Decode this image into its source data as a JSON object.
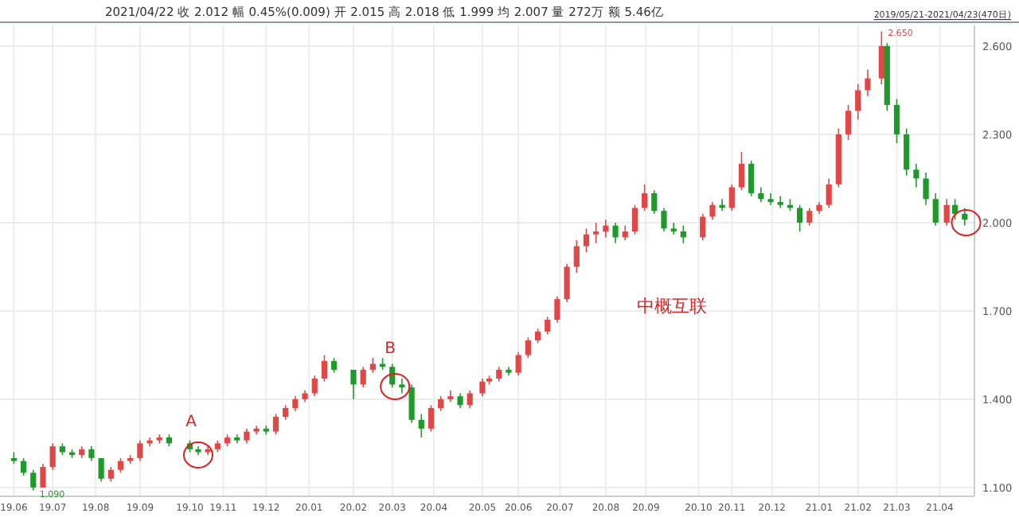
{
  "chart_data": {
    "type": "candlestick",
    "title": "2021/04/22 收 2.012 幅 0.45%(0.009) 开 2.015 高 2.018 低 1.999 均 2.007 量 272万 额 5.46亿",
    "annotations": [
      "中概互联",
      "2019/05/21-2021/04/23(470日)",
      {
        "text": "2.650",
        "x": "2021-02-18",
        "y": 2.65
      },
      {
        "text": "1.090",
        "x": "2019-06-17",
        "y": 1.09
      },
      "A",
      "B"
    ],
    "x": [
      "2019-06-03",
      "2019-06-10",
      "2019-06-17",
      "2019-06-24",
      "2019-07-01",
      "2019-07-08",
      "2019-07-15",
      "2019-07-22",
      "2019-07-29",
      "2019-08-05",
      "2019-08-12",
      "2019-08-19",
      "2019-08-26",
      "2019-09-02",
      "2019-09-09",
      "2019-09-16",
      "2019-09-23",
      "2019-10-08",
      "2019-10-14",
      "2019-10-21",
      "2019-10-28",
      "2019-11-04",
      "2019-11-11",
      "2019-11-18",
      "2019-11-25",
      "2019-12-02",
      "2019-12-09",
      "2019-12-16",
      "2019-12-23",
      "2019-12-30",
      "2020-01-06",
      "2020-01-13",
      "2020-01-20",
      "2020-02-03",
      "2020-02-10",
      "2020-02-17",
      "2020-02-24",
      "2020-03-02",
      "2020-03-09",
      "2020-03-16",
      "2020-03-23",
      "2020-03-30",
      "2020-04-06",
      "2020-04-13",
      "2020-04-20",
      "2020-04-27",
      "2020-05-06",
      "2020-05-11",
      "2020-05-18",
      "2020-05-25",
      "2020-06-01",
      "2020-06-08",
      "2020-06-15",
      "2020-06-22",
      "2020-06-29",
      "2020-07-06",
      "2020-07-13",
      "2020-07-20",
      "2020-07-27",
      "2020-08-03",
      "2020-08-10",
      "2020-08-17",
      "2020-08-24",
      "2020-08-31",
      "2020-09-07",
      "2020-09-14",
      "2020-09-21",
      "2020-09-28",
      "2020-10-12",
      "2020-10-19",
      "2020-10-26",
      "2020-11-02",
      "2020-11-09",
      "2020-11-16",
      "2020-11-23",
      "2020-11-30",
      "2020-12-07",
      "2020-12-14",
      "2020-12-21",
      "2020-12-28",
      "2021-01-04",
      "2021-01-11",
      "2021-01-18",
      "2021-01-25",
      "2021-02-01",
      "2021-02-08",
      "2021-02-18",
      "2021-02-22",
      "2021-03-01",
      "2021-03-08",
      "2021-03-15",
      "2021-03-22",
      "2021-03-29",
      "2021-04-06",
      "2021-04-12",
      "2021-04-19"
    ],
    "ohlc": [
      [
        1.2,
        1.22,
        1.18,
        1.19
      ],
      [
        1.19,
        1.2,
        1.14,
        1.15
      ],
      [
        1.15,
        1.16,
        1.09,
        1.1
      ],
      [
        1.1,
        1.18,
        1.1,
        1.17
      ],
      [
        1.17,
        1.25,
        1.16,
        1.24
      ],
      [
        1.24,
        1.25,
        1.21,
        1.22
      ],
      [
        1.22,
        1.23,
        1.2,
        1.21
      ],
      [
        1.21,
        1.24,
        1.2,
        1.23
      ],
      [
        1.23,
        1.24,
        1.19,
        1.2
      ],
      [
        1.2,
        1.2,
        1.12,
        1.13
      ],
      [
        1.13,
        1.17,
        1.12,
        1.16
      ],
      [
        1.16,
        1.2,
        1.15,
        1.19
      ],
      [
        1.19,
        1.21,
        1.18,
        1.2
      ],
      [
        1.2,
        1.26,
        1.19,
        1.25
      ],
      [
        1.25,
        1.27,
        1.24,
        1.26
      ],
      [
        1.26,
        1.28,
        1.25,
        1.27
      ],
      [
        1.27,
        1.28,
        1.24,
        1.25
      ],
      [
        1.25,
        1.26,
        1.22,
        1.23
      ],
      [
        1.23,
        1.24,
        1.21,
        1.22
      ],
      [
        1.22,
        1.24,
        1.21,
        1.23
      ],
      [
        1.23,
        1.26,
        1.22,
        1.25
      ],
      [
        1.25,
        1.28,
        1.24,
        1.27
      ],
      [
        1.27,
        1.28,
        1.25,
        1.26
      ],
      [
        1.26,
        1.3,
        1.25,
        1.29
      ],
      [
        1.29,
        1.31,
        1.28,
        1.3
      ],
      [
        1.3,
        1.31,
        1.28,
        1.29
      ],
      [
        1.29,
        1.35,
        1.28,
        1.34
      ],
      [
        1.34,
        1.38,
        1.33,
        1.37
      ],
      [
        1.37,
        1.41,
        1.36,
        1.4
      ],
      [
        1.4,
        1.43,
        1.39,
        1.42
      ],
      [
        1.42,
        1.48,
        1.41,
        1.47
      ],
      [
        1.47,
        1.55,
        1.46,
        1.53
      ],
      [
        1.53,
        1.54,
        1.49,
        1.5
      ],
      [
        1.5,
        1.5,
        1.4,
        1.45
      ],
      [
        1.45,
        1.51,
        1.44,
        1.5
      ],
      [
        1.5,
        1.54,
        1.49,
        1.52
      ],
      [
        1.52,
        1.54,
        1.5,
        1.51
      ],
      [
        1.51,
        1.52,
        1.44,
        1.45
      ],
      [
        1.45,
        1.47,
        1.42,
        1.44
      ],
      [
        1.44,
        1.45,
        1.32,
        1.33
      ],
      [
        1.33,
        1.35,
        1.27,
        1.3
      ],
      [
        1.3,
        1.38,
        1.29,
        1.37
      ],
      [
        1.37,
        1.41,
        1.36,
        1.4
      ],
      [
        1.4,
        1.43,
        1.39,
        1.41
      ],
      [
        1.41,
        1.42,
        1.37,
        1.38
      ],
      [
        1.38,
        1.43,
        1.37,
        1.42
      ],
      [
        1.42,
        1.47,
        1.41,
        1.46
      ],
      [
        1.46,
        1.48,
        1.45,
        1.47
      ],
      [
        1.47,
        1.51,
        1.46,
        1.5
      ],
      [
        1.5,
        1.51,
        1.48,
        1.49
      ],
      [
        1.49,
        1.56,
        1.48,
        1.55
      ],
      [
        1.55,
        1.61,
        1.54,
        1.6
      ],
      [
        1.6,
        1.64,
        1.59,
        1.63
      ],
      [
        1.63,
        1.68,
        1.62,
        1.67
      ],
      [
        1.67,
        1.75,
        1.66,
        1.74
      ],
      [
        1.74,
        1.86,
        1.73,
        1.85
      ],
      [
        1.85,
        1.94,
        1.83,
        1.92
      ],
      [
        1.92,
        1.98,
        1.9,
        1.96
      ],
      [
        1.96,
        2.0,
        1.93,
        1.97
      ],
      [
        1.97,
        2.01,
        1.95,
        1.99
      ],
      [
        1.99,
        2.0,
        1.93,
        1.95
      ],
      [
        1.95,
        1.99,
        1.94,
        1.97
      ],
      [
        1.97,
        2.06,
        1.96,
        2.05
      ],
      [
        2.05,
        2.13,
        2.04,
        2.1
      ],
      [
        2.1,
        2.11,
        2.03,
        2.04
      ],
      [
        2.04,
        2.05,
        1.97,
        1.98
      ],
      [
        1.98,
        2.0,
        1.96,
        1.97
      ],
      [
        1.97,
        1.99,
        1.93,
        1.95
      ],
      [
        1.95,
        2.03,
        1.94,
        2.02
      ],
      [
        2.02,
        2.07,
        2.01,
        2.06
      ],
      [
        2.06,
        2.08,
        2.04,
        2.05
      ],
      [
        2.05,
        2.13,
        2.04,
        2.12
      ],
      [
        2.12,
        2.24,
        2.11,
        2.2
      ],
      [
        2.2,
        2.21,
        2.09,
        2.1
      ],
      [
        2.1,
        2.12,
        2.07,
        2.08
      ],
      [
        2.08,
        2.1,
        2.06,
        2.07
      ],
      [
        2.07,
        2.09,
        2.05,
        2.06
      ],
      [
        2.06,
        2.08,
        2.04,
        2.05
      ],
      [
        2.05,
        2.06,
        1.97,
        2.0
      ],
      [
        2.0,
        2.05,
        1.99,
        2.04
      ],
      [
        2.04,
        2.07,
        2.03,
        2.06
      ],
      [
        2.06,
        2.15,
        2.05,
        2.13
      ],
      [
        2.13,
        2.32,
        2.12,
        2.3
      ],
      [
        2.3,
        2.4,
        2.28,
        2.38
      ],
      [
        2.38,
        2.47,
        2.35,
        2.45
      ],
      [
        2.45,
        2.52,
        2.43,
        2.49
      ],
      [
        2.49,
        2.65,
        2.47,
        2.6
      ],
      [
        2.6,
        2.61,
        2.38,
        2.4
      ],
      [
        2.4,
        2.42,
        2.27,
        2.3
      ],
      [
        2.3,
        2.32,
        2.16,
        2.18
      ],
      [
        2.18,
        2.2,
        2.12,
        2.15
      ],
      [
        2.15,
        2.17,
        2.06,
        2.08
      ],
      [
        2.08,
        2.1,
        1.99,
        2.0
      ],
      [
        2.0,
        2.08,
        1.99,
        2.06
      ],
      [
        2.06,
        2.08,
        2.01,
        2.03
      ],
      [
        2.03,
        2.05,
        1.99,
        2.01
      ]
    ],
    "xlim": [
      "2019-05-24",
      "2021-04-26"
    ],
    "xticks": [
      {
        "value": "2019-06-03",
        "label": "19.06"
      },
      {
        "value": "2019-07-01",
        "label": "19.07"
      },
      {
        "value": "2019-08-01",
        "label": "19.08"
      },
      {
        "value": "2019-09-02",
        "label": "19.09"
      },
      {
        "value": "2019-10-08",
        "label": "19.10"
      },
      {
        "value": "2019-11-01",
        "label": "19.11"
      },
      {
        "value": "2019-12-02",
        "label": "19.12"
      },
      {
        "value": "2020-01-02",
        "label": "20.01"
      },
      {
        "value": "2020-02-03",
        "label": "20.02"
      },
      {
        "value": "2020-03-02",
        "label": "20.03"
      },
      {
        "value": "2020-04-01",
        "label": "20.04"
      },
      {
        "value": "2020-05-06",
        "label": "20.05"
      },
      {
        "value": "2020-06-01",
        "label": "20.06"
      },
      {
        "value": "2020-07-01",
        "label": "20.07"
      },
      {
        "value": "2020-08-03",
        "label": "20.08"
      },
      {
        "value": "2020-09-01",
        "label": "20.09"
      },
      {
        "value": "2020-10-09",
        "label": "20.10"
      },
      {
        "value": "2020-11-02",
        "label": "20.11"
      },
      {
        "value": "2020-12-01",
        "label": "20.12"
      },
      {
        "value": "2021-01-04",
        "label": "21.01"
      },
      {
        "value": "2021-02-01",
        "label": "21.02"
      },
      {
        "value": "2021-03-01",
        "label": "21.03"
      },
      {
        "value": "2021-04-01",
        "label": "21.04"
      }
    ],
    "ylim": [
      1.07,
      2.67
    ],
    "yticks": [
      {
        "value": 1.1,
        "label": "1.100"
      },
      {
        "value": 1.4,
        "label": "1.400"
      },
      {
        "value": 1.7,
        "label": "1.700"
      },
      {
        "value": 2.0,
        "label": "2.000"
      },
      {
        "value": 2.3,
        "label": "2.300"
      },
      {
        "value": 2.6,
        "label": "2.600"
      }
    ],
    "grid": true
  }
}
